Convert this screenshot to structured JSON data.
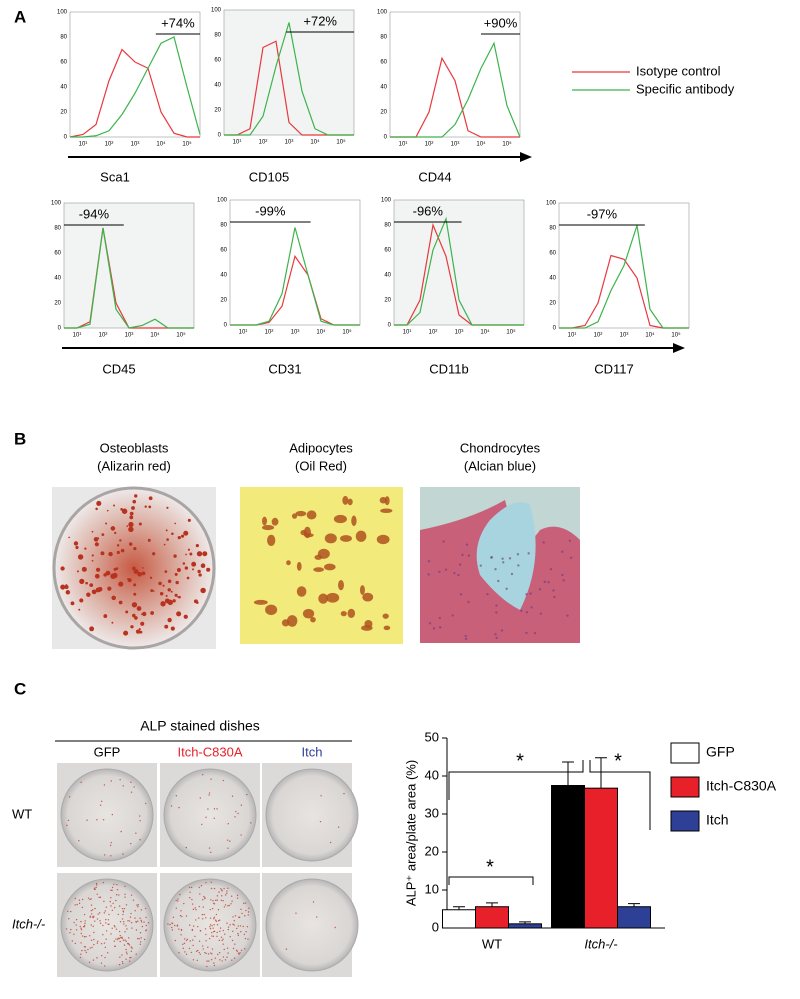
{
  "panels": {
    "a": "A",
    "b": "B",
    "c": "C"
  },
  "flow": {
    "xlim": [
      0.5,
      5.5
    ],
    "ylim": [
      0,
      100
    ],
    "x": [
      0.5,
      1,
      1.5,
      2,
      2.5,
      3,
      3.5,
      4,
      4.5,
      5,
      5.5
    ],
    "xticks": [
      {
        "value": 1,
        "label": "10¹"
      },
      {
        "value": 2,
        "label": "10²"
      },
      {
        "value": 3,
        "label": "10³"
      },
      {
        "value": 4,
        "label": "10⁴"
      },
      {
        "value": 5,
        "label": "10⁵"
      }
    ],
    "yticks": [
      0,
      20,
      40,
      60,
      80,
      100
    ],
    "legend": [
      {
        "name": "Isotype control",
        "color": "#e8383d"
      },
      {
        "name": "Specific antibody",
        "color": "#3cb44b"
      }
    ],
    "plots": [
      {
        "name": "Sca1",
        "percent": "+74%",
        "gate": [
          3.8,
          5.5
        ],
        "series": [
          [
            0,
            2,
            10,
            45,
            70,
            60,
            55,
            20,
            3,
            0,
            0
          ],
          [
            0,
            0,
            1,
            5,
            18,
            35,
            55,
            75,
            80,
            40,
            2
          ]
        ]
      },
      {
        "name": "CD105",
        "percent": "+72%",
        "gate": [
          2.9,
          5.5
        ],
        "series": [
          [
            0,
            0,
            5,
            70,
            75,
            10,
            0,
            0,
            0,
            0,
            0
          ],
          [
            0,
            0,
            0,
            15,
            55,
            90,
            35,
            5,
            0,
            0,
            0
          ]
        ]
      },
      {
        "name": "CD44",
        "percent": "+90%",
        "gate": [
          4,
          5.5
        ],
        "series": [
          [
            0,
            0,
            0,
            20,
            63,
            45,
            5,
            0,
            0,
            0,
            0
          ],
          [
            0,
            0,
            0,
            0,
            0,
            10,
            30,
            55,
            75,
            25,
            0
          ]
        ]
      },
      {
        "name": "CD45",
        "percent": "-94%",
        "gate": [
          0.5,
          2.8
        ],
        "series": [
          [
            0,
            0,
            5,
            80,
            20,
            0,
            0,
            0,
            0,
            0,
            0
          ],
          [
            0,
            0,
            3,
            80,
            15,
            0,
            2,
            7,
            0,
            0,
            0
          ]
        ]
      },
      {
        "name": "CD31",
        "percent": "-99%",
        "gate": [
          0.5,
          3.6
        ],
        "series": [
          [
            0,
            0,
            0,
            2,
            15,
            55,
            40,
            5,
            0,
            0,
            0
          ],
          [
            0,
            0,
            0,
            3,
            25,
            78,
            40,
            3,
            0,
            0,
            0
          ]
        ]
      },
      {
        "name": "CD11b",
        "percent": "-96%",
        "gate": [
          0.5,
          3.1
        ],
        "series": [
          [
            0,
            0,
            20,
            80,
            55,
            8,
            0,
            0,
            0,
            0,
            0
          ],
          [
            0,
            0,
            10,
            60,
            85,
            20,
            0,
            0,
            0,
            0,
            0
          ]
        ]
      },
      {
        "name": "CD117",
        "percent": "-97%",
        "gate": [
          0.5,
          3.8
        ],
        "series": [
          [
            0,
            0,
            2,
            20,
            58,
            55,
            40,
            2,
            0,
            0,
            0
          ],
          [
            0,
            0,
            0,
            5,
            30,
            50,
            82,
            15,
            0,
            0,
            0
          ]
        ]
      }
    ]
  },
  "differentiation": [
    {
      "title": "Osteoblasts",
      "stain": "(Alizarin red)"
    },
    {
      "title": "Adipocytes",
      "stain": "(Oil Red)"
    },
    {
      "title": "Chondrocytes",
      "stain": "(Alcian blue)"
    }
  ],
  "dishes": {
    "title": "ALP stained dishes",
    "columns": [
      {
        "label": "GFP",
        "color": "#000000"
      },
      {
        "label": "Itch-C830A",
        "color": "#e8202a"
      },
      {
        "label": "Itch",
        "color": "#2e3f96"
      }
    ],
    "rows": [
      "WT",
      "Itch-/-"
    ]
  },
  "chart_data": {
    "type": "bar",
    "ylabel": "ALP⁺ area/plate area (%)",
    "categories": [
      "WT",
      "Itch-/-"
    ],
    "ylim": [
      0,
      50
    ],
    "yticks": [
      0,
      10,
      20,
      30,
      40,
      50
    ],
    "series": [
      {
        "name": "GFP",
        "color": "#ffffff",
        "colors": [
          "#ffffff",
          "#000000"
        ],
        "values": [
          4.8,
          37.5
        ],
        "errors": [
          0.8,
          6.2
        ]
      },
      {
        "name": "Itch-C830A",
        "color": "#e8202a",
        "values": [
          5.6,
          36.8
        ],
        "errors": [
          1.0,
          8.0
        ]
      },
      {
        "name": "Itch",
        "color": "#2e3f96",
        "values": [
          1.1,
          5.6
        ],
        "errors": [
          0.5,
          0.8
        ]
      }
    ],
    "annotations": [
      "*",
      "*",
      "*"
    ]
  }
}
